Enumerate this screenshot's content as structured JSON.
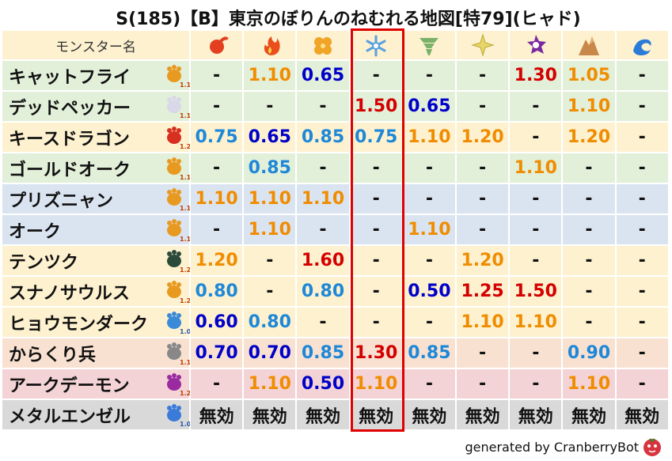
{
  "title": "S(185)【B】東京のぼりんのねむれる地図[特79](ヒャド)",
  "table": {
    "header": {
      "name_column": "モンスター名"
    },
    "rows": [
      {
        "name": "キャットフライ",
        "badge": "1.1",
        "values": [
          "-",
          "1.10",
          "0.65",
          "-",
          "-",
          "-",
          "1.30",
          "1.05",
          "-"
        ]
      },
      {
        "name": "デッドペッカー",
        "badge": "1.1",
        "values": [
          "-",
          "-",
          "-",
          "1.50",
          "0.65",
          "-",
          "-",
          "1.10",
          "-"
        ]
      },
      {
        "name": "キースドラゴン",
        "badge": "1.2",
        "values": [
          "0.75",
          "0.65",
          "0.85",
          "0.75",
          "1.10",
          "1.20",
          "-",
          "1.20",
          "-"
        ]
      },
      {
        "name": "ゴールドオーク",
        "badge": "1.1",
        "values": [
          "-",
          "0.85",
          "-",
          "-",
          "-",
          "-",
          "1.10",
          "-",
          "-"
        ]
      },
      {
        "name": "プリズニャン",
        "badge": "1.1",
        "values": [
          "1.10",
          "1.10",
          "1.10",
          "-",
          "-",
          "-",
          "-",
          "-",
          "-"
        ]
      },
      {
        "name": "オーク",
        "badge": "1.1",
        "values": [
          "-",
          "1.10",
          "-",
          "-",
          "1.10",
          "-",
          "-",
          "-",
          "-"
        ]
      },
      {
        "name": "テンツク",
        "badge": "1.2",
        "values": [
          "1.20",
          "-",
          "1.60",
          "-",
          "-",
          "1.20",
          "-",
          "-",
          "-"
        ]
      },
      {
        "name": "スナノサウルス",
        "badge": "1.2",
        "values": [
          "0.80",
          "-",
          "0.80",
          "-",
          "0.50",
          "1.25",
          "1.50",
          "-",
          "-"
        ]
      },
      {
        "name": "ヒョウモンダーク",
        "badge": "1.0",
        "values": [
          "0.60",
          "0.80",
          "-",
          "-",
          "-",
          "1.10",
          "1.10",
          "-",
          "-"
        ]
      },
      {
        "name": "からくり兵",
        "badge": "1.1",
        "values": [
          "0.70",
          "0.70",
          "0.85",
          "1.30",
          "0.85",
          "-",
          "-",
          "0.90",
          "-"
        ]
      },
      {
        "name": "アークデーモン",
        "badge": "1.2",
        "values": [
          "-",
          "1.10",
          "0.50",
          "1.10",
          "-",
          "-",
          "-",
          "1.10",
          "-"
        ]
      },
      {
        "name": "メタルエンゼル",
        "badge": "1.0",
        "values": [
          "無効",
          "無効",
          "無効",
          "無効",
          "無効",
          "無効",
          "無効",
          "無効",
          "無効"
        ]
      }
    ]
  },
  "footer": "generated by CranberryBot"
}
